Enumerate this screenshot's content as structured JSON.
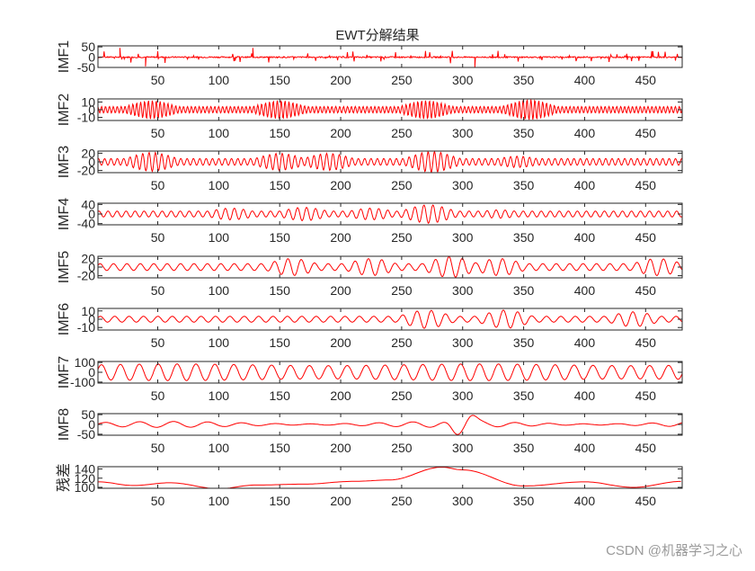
{
  "chart_data": {
    "type": "line",
    "title": "EWT分解结果",
    "xlabel": "",
    "xlim": [
      1,
      480
    ],
    "xticks": [
      50,
      100,
      150,
      200,
      250,
      300,
      350,
      400,
      450
    ],
    "grid": false,
    "line_color": "#ff0000",
    "panels": [
      {
        "ylabel": "IMF1",
        "yticks": [
          -50,
          0,
          50
        ],
        "ylim": [
          -50,
          55
        ],
        "kind": "impulsive",
        "amp": 45
      },
      {
        "ylabel": "IMF2",
        "yticks": [
          -10,
          0,
          10
        ],
        "ylim": [
          -14,
          14
        ],
        "kind": "highfreq",
        "amp": 12,
        "period": 3.2
      },
      {
        "ylabel": "IMF3",
        "yticks": [
          -20,
          0,
          20
        ],
        "ylim": [
          -25,
          25
        ],
        "kind": "bursts",
        "amp": 22,
        "period": 5.2
      },
      {
        "ylabel": "IMF4",
        "yticks": [
          -40,
          0,
          40
        ],
        "ylim": [
          -45,
          45
        ],
        "kind": "bursts",
        "amp": 35,
        "period": 7.4
      },
      {
        "ylabel": "IMF5",
        "yticks": [
          -20,
          0,
          20
        ],
        "ylim": [
          -25,
          25
        ],
        "kind": "bursts",
        "amp": 22,
        "period": 11
      },
      {
        "ylabel": "IMF6",
        "yticks": [
          -10,
          0,
          10
        ],
        "ylim": [
          -13,
          13
        ],
        "kind": "bursts",
        "amp": 10,
        "period": 11.8
      },
      {
        "ylabel": "IMF7",
        "yticks": [
          -100,
          0,
          100
        ],
        "ylim": [
          -110,
          110
        ],
        "kind": "steady",
        "amp": 85,
        "period": 15.5
      },
      {
        "ylabel": "IMF8",
        "yticks": [
          -50,
          0,
          50
        ],
        "ylim": [
          -55,
          55
        ],
        "kind": "slow",
        "amp": 15,
        "period": 28
      },
      {
        "ylabel": "残差",
        "yticks": [
          100,
          120,
          140
        ],
        "ylim": [
          98,
          145
        ],
        "kind": "trend",
        "points": [
          [
            1,
            112
          ],
          [
            30,
            104
          ],
          [
            60,
            110
          ],
          [
            100,
            97
          ],
          [
            130,
            105
          ],
          [
            170,
            107
          ],
          [
            210,
            113
          ],
          [
            240,
            116
          ],
          [
            283,
            144
          ],
          [
            300,
            138
          ],
          [
            350,
            103
          ],
          [
            400,
            112
          ],
          [
            440,
            100
          ],
          [
            480,
            113
          ]
        ]
      }
    ]
  },
  "watermark": "CSDN @机器学习之心"
}
